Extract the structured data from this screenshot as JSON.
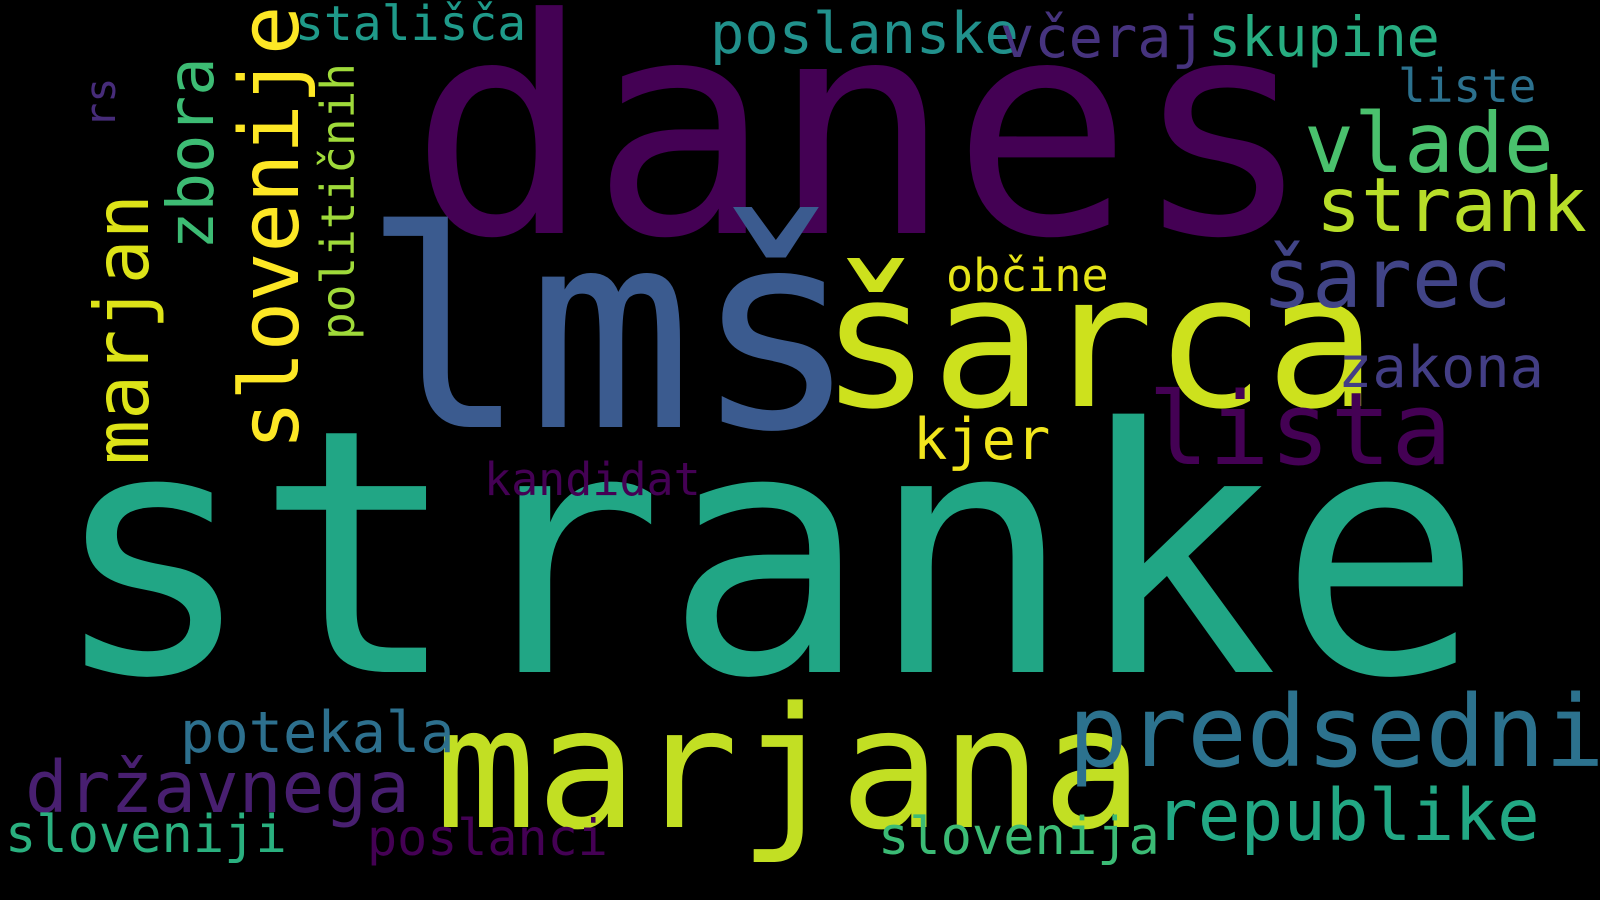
{
  "words": [
    {
      "text": "stranke",
      "color": "#21a685",
      "orientation": "horizontal"
    },
    {
      "text": "danes",
      "color": "#440154",
      "orientation": "horizontal"
    },
    {
      "text": "lmš",
      "color": "#3b5b8f",
      "orientation": "horizontal"
    },
    {
      "text": "šarca",
      "color": "#cde11d",
      "orientation": "horizontal"
    },
    {
      "text": "marjana",
      "color": "#c2df23",
      "orientation": "horizontal"
    },
    {
      "text": "predsednik",
      "color": "#2c728e",
      "orientation": "horizontal"
    },
    {
      "text": "slovenije",
      "color": "#fde725",
      "orientation": "vertical"
    },
    {
      "text": "marjan",
      "color": "#dde318",
      "orientation": "vertical"
    },
    {
      "text": "lista",
      "color": "#440154",
      "orientation": "horizontal"
    },
    {
      "text": "šarec",
      "color": "#414487",
      "orientation": "horizontal"
    },
    {
      "text": "vlade",
      "color": "#4ac16d",
      "orientation": "horizontal"
    },
    {
      "text": "strank",
      "color": "#b8de29",
      "orientation": "horizontal"
    },
    {
      "text": "zbora",
      "color": "#3dbc74",
      "orientation": "vertical"
    },
    {
      "text": "republike",
      "color": "#22a884",
      "orientation": "horizontal"
    },
    {
      "text": "državnega",
      "color": "#481f70",
      "orientation": "horizontal"
    },
    {
      "text": "potekala",
      "color": "#2d708e",
      "orientation": "horizontal"
    },
    {
      "text": "poslanske",
      "color": "#21918c",
      "orientation": "horizontal"
    },
    {
      "text": "skupine",
      "color": "#27ad81",
      "orientation": "horizontal"
    },
    {
      "text": "včeraj",
      "color": "#46337e",
      "orientation": "horizontal"
    },
    {
      "text": "zakona",
      "color": "#433e85",
      "orientation": "horizontal"
    },
    {
      "text": "kjer",
      "color": "#f1e51d",
      "orientation": "horizontal"
    },
    {
      "text": "občine",
      "color": "#e5e419",
      "orientation": "horizontal"
    },
    {
      "text": "sloveniji",
      "color": "#2ab07f",
      "orientation": "horizontal"
    },
    {
      "text": "slovenija",
      "color": "#3bbb75",
      "orientation": "horizontal"
    },
    {
      "text": "poslanci",
      "color": "#440154",
      "orientation": "horizontal"
    },
    {
      "text": "stališča",
      "color": "#1f9a8a",
      "orientation": "horizontal"
    },
    {
      "text": "političnih",
      "color": "#9fda3a",
      "orientation": "vertical"
    },
    {
      "text": "liste",
      "color": "#2c718e",
      "orientation": "horizontal"
    },
    {
      "text": "kandidat",
      "color": "#440154",
      "orientation": "horizontal"
    },
    {
      "text": "rs",
      "color": "#472c7a",
      "orientation": "vertical"
    }
  ]
}
